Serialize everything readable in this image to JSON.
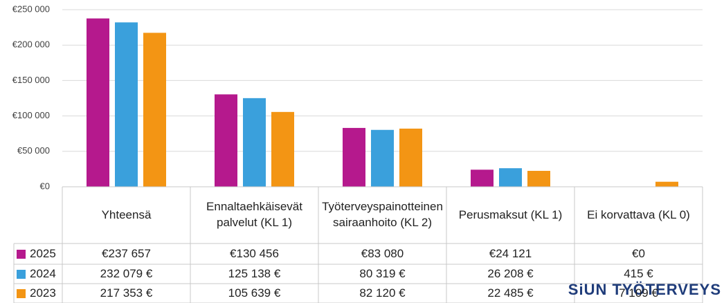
{
  "chart_data": {
    "type": "bar",
    "categories": [
      "Yhteensä",
      "Ennaltaehkäisevät palvelut (KL 1)",
      "Työterveyspainotteinen sairaanhoito (KL 2)",
      "Perusmaksut (KL 1)",
      "Ei korvattava (KL 0)"
    ],
    "series": [
      {
        "name": "2025",
        "color": "#b5198d",
        "values": [
          237657,
          130456,
          83080,
          24121,
          0
        ],
        "value_labels": [
          "€237 657",
          "€130 456",
          "€83 080",
          "€24 121",
          "€0"
        ]
      },
      {
        "name": "2024",
        "color": "#3aa0dc",
        "values": [
          232079,
          125138,
          80319,
          26208,
          415
        ],
        "value_labels": [
          "232 079 €",
          "125 138 €",
          "80 319 €",
          "26 208 €",
          "415 €"
        ]
      },
      {
        "name": "2023",
        "color": "#f39514",
        "values": [
          217353,
          105639,
          82120,
          22485,
          7109
        ],
        "value_labels": [
          "217 353 €",
          "105 639 €",
          "82 120 €",
          "22 485 €",
          "7 109 €"
        ]
      }
    ],
    "ylim": [
      0,
      250000
    ],
    "yticks": [
      {
        "value": 0,
        "label": "€0"
      },
      {
        "value": 50000,
        "label": "€50 000"
      },
      {
        "value": 100000,
        "label": "€100 000"
      },
      {
        "value": 150000,
        "label": "€150 000"
      },
      {
        "value": 200000,
        "label": "€200 000"
      },
      {
        "value": 250000,
        "label": "€250 000"
      }
    ],
    "grid": true,
    "watermark": "SiUN TYÖTERVEYS"
  }
}
